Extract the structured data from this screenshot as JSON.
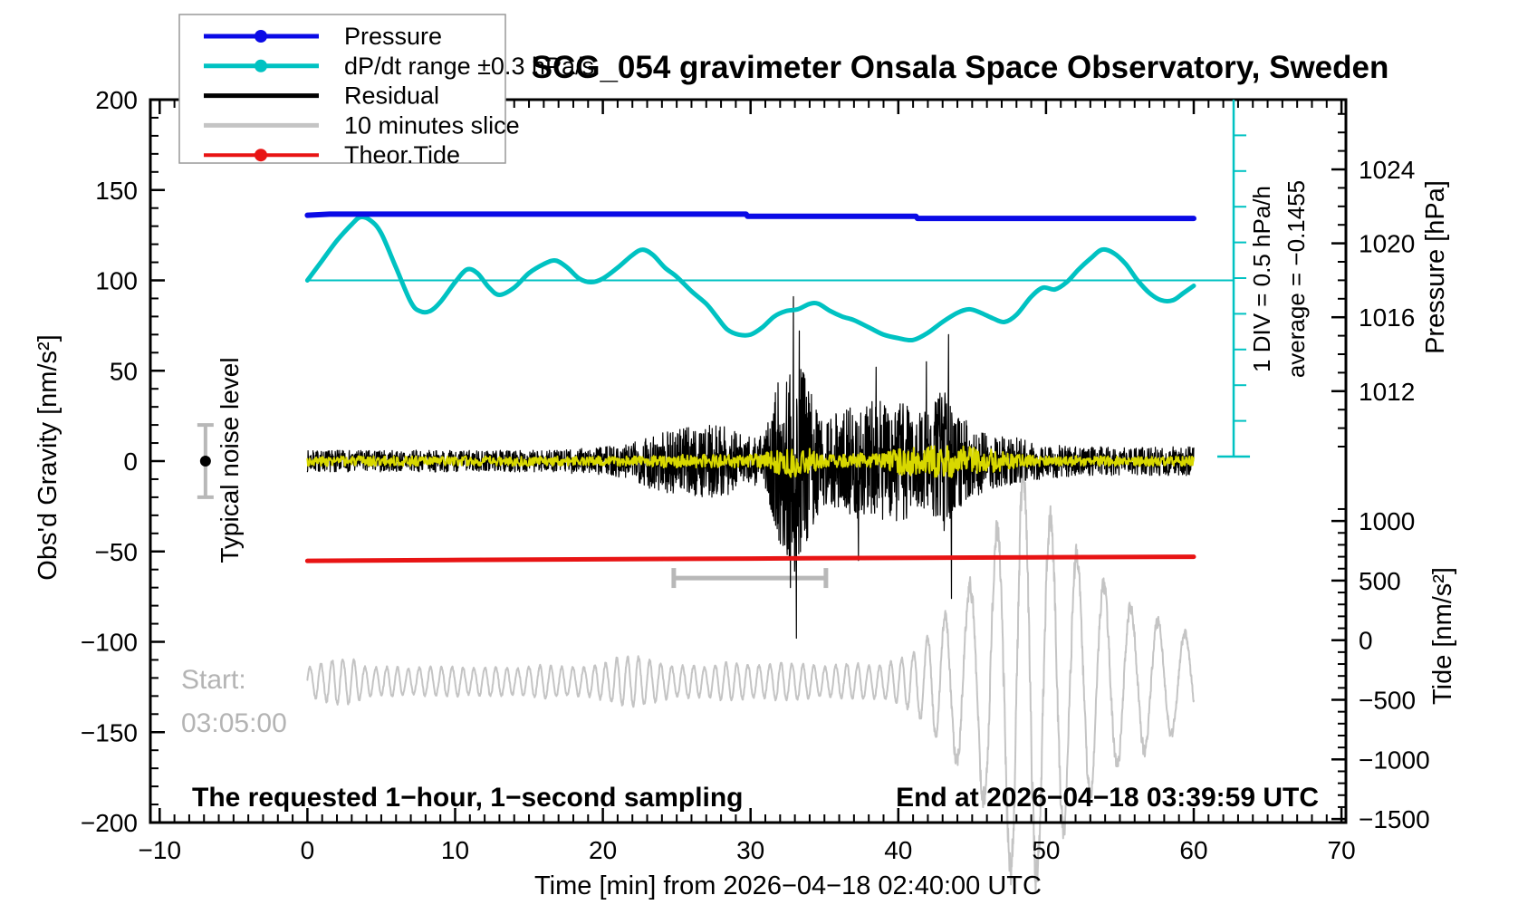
{
  "title": "SCG_054 gravimeter Onsala Space Observatory, Sweden",
  "legend": {
    "items": [
      {
        "label": "Pressure",
        "color": "#0a0ae6",
        "marker": true,
        "width": 5
      },
      {
        "label": "dP/dt range ±0.3 hPa/s",
        "color": "#00c2c2",
        "marker": true,
        "width": 5
      },
      {
        "label": "Residual",
        "color": "#000000",
        "marker": false,
        "width": 5
      },
      {
        "label": "10 minutes slice",
        "color": "#c4c4c4",
        "marker": false,
        "width": 5
      },
      {
        "label": "Theor.Tide",
        "color": "#e81414",
        "marker": true,
        "width": 4
      }
    ]
  },
  "annotations": {
    "noise_level": "Typical noise level",
    "start_label": "Start:",
    "start_time": "03:05:00",
    "sampling": "The requested 1−hour, 1−second sampling",
    "end_time": "End at 2026−04−18 03:39:59 UTC",
    "div_scale": "1 DIV = 0.5 hPa/h",
    "average": "average = −0.1455"
  },
  "chart_data": {
    "type": "line",
    "title": "SCG_054 gravimeter Onsala Space Observatory, Sweden",
    "x_axis": {
      "label": "Time [min] from 2026−04−18 02:40:00 UTC",
      "range": [
        -10,
        70
      ],
      "ticks": [
        -10,
        0,
        10,
        20,
        30,
        40,
        50,
        60,
        70
      ],
      "minor_step": 1
    },
    "y_left": {
      "label": "Obs'd Gravity [nm/s²]",
      "range": [
        -200,
        200
      ],
      "ticks": [
        200,
        150,
        100,
        50,
        0,
        -50,
        -100,
        -150,
        -200
      ],
      "minor_step": 10
    },
    "y_right_pressure": {
      "label": "Pressure [hPa]",
      "ticks": [
        1024,
        1020,
        1016,
        1012
      ],
      "minor_step": 1,
      "minor_range": [
        1008,
        1027
      ]
    },
    "y_right_tide": {
      "label": "Tide [nm/s²]",
      "ticks": [
        1000,
        500,
        0,
        -500,
        -1000,
        -1500
      ],
      "minor_step": 100,
      "minor_range": [
        -1500,
        1100
      ]
    },
    "grid": false,
    "legend_position": "top-left",
    "reference_line": {
      "axis": "gravity",
      "value": 100,
      "color": "#00c2c2",
      "t_start": 0,
      "t_end": 62.7
    },
    "scale_bar": {
      "t": 62.7,
      "gravity_top": 200,
      "gravity_bottom": 0,
      "divisions": 10,
      "div_value": "0.5 hPa/h",
      "average": -0.1455,
      "color": "#00c2c2"
    },
    "noise_errorbar": {
      "t": -6.9,
      "center": 0,
      "half_range": 20,
      "axis": "gravity",
      "bar_color": "#b8b8b8",
      "dot_color": "#000000"
    },
    "slice_duration_bar": {
      "t_start": 24.8,
      "t_end": 35.1,
      "gravity": -64.7,
      "color": "#b8b8b8",
      "length_minutes": 10
    },
    "series": [
      {
        "name": "Pressure",
        "color": "#0a0ae6",
        "axis": "pressure",
        "width": 6,
        "points": [
          [
            0,
            1021.52
          ],
          [
            1.5,
            1021.58
          ],
          [
            29.7,
            1021.58
          ],
          [
            29.8,
            1021.46
          ],
          [
            41.2,
            1021.46
          ],
          [
            41.3,
            1021.35
          ],
          [
            60,
            1021.35
          ]
        ]
      },
      {
        "name": "dP/dt range ±0.3 hPa/s",
        "color": "#00c2c2",
        "axis": "gravity",
        "width": 5,
        "points": [
          [
            0,
            100
          ],
          [
            1,
            111
          ],
          [
            2,
            122
          ],
          [
            3,
            131
          ],
          [
            3.6,
            135
          ],
          [
            4.3,
            133
          ],
          [
            5,
            126
          ],
          [
            6,
            107
          ],
          [
            7,
            88
          ],
          [
            7.6,
            83
          ],
          [
            8.3,
            83
          ],
          [
            9,
            88
          ],
          [
            10,
            99
          ],
          [
            10.8,
            106
          ],
          [
            11.5,
            104
          ],
          [
            12.3,
            96
          ],
          [
            13,
            92
          ],
          [
            14,
            96
          ],
          [
            15,
            104
          ],
          [
            16,
            109
          ],
          [
            16.8,
            111
          ],
          [
            17.6,
            107
          ],
          [
            18.4,
            101
          ],
          [
            19.2,
            99
          ],
          [
            20,
            101
          ],
          [
            21,
            107
          ],
          [
            22,
            114
          ],
          [
            22.7,
            117
          ],
          [
            23.4,
            114
          ],
          [
            24.2,
            107
          ],
          [
            25,
            102
          ],
          [
            26,
            94
          ],
          [
            27,
            87
          ],
          [
            27.7,
            80
          ],
          [
            28.4,
            73
          ],
          [
            29.2,
            70
          ],
          [
            30,
            70
          ],
          [
            30.8,
            74
          ],
          [
            31.6,
            80
          ],
          [
            32.4,
            83
          ],
          [
            33.2,
            84
          ],
          [
            34,
            87
          ],
          [
            34.6,
            87
          ],
          [
            35.4,
            83
          ],
          [
            36.2,
            80
          ],
          [
            37,
            78
          ],
          [
            38,
            74
          ],
          [
            39,
            70
          ],
          [
            40,
            68
          ],
          [
            41,
            67
          ],
          [
            42,
            71
          ],
          [
            43,
            77
          ],
          [
            44,
            82
          ],
          [
            44.8,
            84
          ],
          [
            45.6,
            82
          ],
          [
            46.4,
            79
          ],
          [
            47.2,
            77
          ],
          [
            48,
            81
          ],
          [
            49,
            91
          ],
          [
            49.8,
            96
          ],
          [
            50.6,
            95
          ],
          [
            51.4,
            99
          ],
          [
            52.2,
            106
          ],
          [
            53,
            112
          ],
          [
            53.8,
            117
          ],
          [
            54.6,
            115
          ],
          [
            55.4,
            109
          ],
          [
            56.2,
            100
          ],
          [
            57,
            93
          ],
          [
            57.8,
            89
          ],
          [
            58.6,
            89
          ],
          [
            59.3,
            93
          ],
          [
            60,
            97
          ]
        ]
      },
      {
        "name": "Residual",
        "color": "#000000",
        "axis": "gravity",
        "width": 1.2,
        "center": 0,
        "envelope_per_min": [
          6,
          6,
          6,
          6,
          6,
          6,
          6,
          6,
          6,
          6,
          6,
          6,
          6,
          6,
          6,
          6,
          6,
          6,
          7,
          7,
          8,
          9,
          10,
          15,
          18,
          18,
          19,
          20,
          20,
          17,
          13,
          15,
          50,
          62,
          40,
          24,
          27,
          31,
          34,
          33,
          34,
          30,
          28,
          40,
          27,
          21,
          16,
          14,
          13,
          11,
          10,
          9,
          9,
          8,
          8,
          8,
          8,
          8,
          8,
          8,
          8
        ],
        "spikes": [
          [
            32.7,
            -70
          ],
          [
            32.9,
            91
          ],
          [
            33.1,
            -98
          ],
          [
            33.3,
            72
          ],
          [
            37.3,
            -55
          ],
          [
            38.5,
            52
          ],
          [
            41.9,
            55
          ],
          [
            43.4,
            70
          ],
          [
            43.6,
            -76
          ]
        ]
      },
      {
        "name": "Residual smoothed (yellow)",
        "color": "#d8d800",
        "axis": "gravity",
        "width": 2,
        "center": 0,
        "envelope_per_min": [
          3,
          3,
          3,
          3,
          3,
          3,
          3,
          3,
          3,
          3,
          3,
          3,
          3,
          3,
          3,
          3,
          3,
          3,
          3,
          3,
          3,
          3,
          3,
          3,
          4,
          4,
          4,
          4,
          4,
          4,
          4,
          5,
          9,
          11,
          8,
          4,
          4,
          5,
          5,
          5,
          8,
          10,
          11,
          11,
          10,
          9,
          8,
          6,
          4,
          4,
          3,
          3,
          3,
          3,
          3,
          3,
          3,
          3,
          3,
          3,
          3
        ]
      },
      {
        "name": "10 minutes slice",
        "color": "#c4c4c4",
        "axis": "gravity",
        "width": 2,
        "center": -122,
        "envelope_per_min": [
          8,
          10,
          13,
          12,
          8,
          8,
          8,
          7,
          8,
          8,
          8,
          7,
          8,
          8,
          7,
          8,
          9,
          8,
          8,
          8,
          10,
          13,
          14,
          12,
          10,
          8,
          9,
          8,
          10,
          10,
          9,
          9,
          10,
          10,
          9,
          8,
          9,
          10,
          9,
          9,
          12,
          16,
          25,
          35,
          45,
          55,
          68,
          90,
          118,
          115,
          95,
          82,
          70,
          60,
          52,
          46,
          40,
          38,
          30,
          28,
          25
        ]
      },
      {
        "name": "Theor.Tide",
        "color": "#e81414",
        "axis": "tide",
        "width": 5,
        "points": [
          [
            0,
            665
          ],
          [
            15,
            676
          ],
          [
            30,
            685
          ],
          [
            45,
            693
          ],
          [
            60,
            700
          ]
        ]
      }
    ]
  }
}
